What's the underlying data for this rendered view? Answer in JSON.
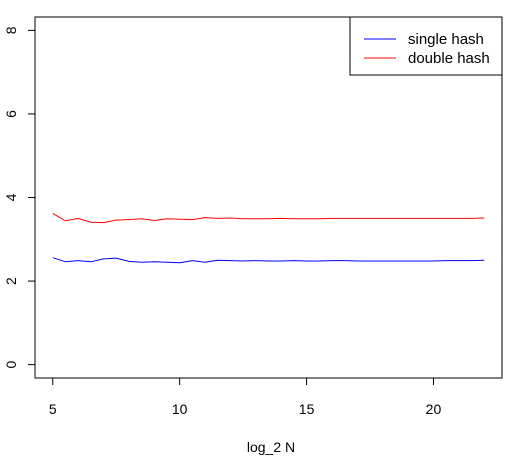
{
  "chart_data": {
    "type": "line",
    "title": "",
    "xlabel": "log_2 N",
    "ylabel": "",
    "xlim": [
      4.3,
      22.7
    ],
    "ylim": [
      -0.32,
      8.32
    ],
    "xticks": [
      5,
      10,
      15,
      20
    ],
    "yticks": [
      0,
      2,
      4,
      6,
      8
    ],
    "grid": false,
    "legend_position": "top-right",
    "x": [
      5,
      5.5,
      6,
      6.5,
      7,
      7.5,
      8,
      8.5,
      9,
      9.5,
      10,
      10.5,
      11,
      11.5,
      12,
      12.5,
      13,
      13.5,
      14,
      14.5,
      15,
      15.5,
      16,
      16.5,
      17,
      17.5,
      18,
      18.5,
      19,
      19.5,
      20,
      20.5,
      21,
      21.5,
      22
    ],
    "series": [
      {
        "name": "single hash",
        "color": "#0000ff",
        "values": [
          2.56,
          2.46,
          2.49,
          2.46,
          2.53,
          2.55,
          2.47,
          2.45,
          2.46,
          2.45,
          2.44,
          2.49,
          2.45,
          2.5,
          2.49,
          2.48,
          2.49,
          2.48,
          2.48,
          2.49,
          2.48,
          2.48,
          2.49,
          2.49,
          2.48,
          2.48,
          2.48,
          2.48,
          2.48,
          2.48,
          2.48,
          2.49,
          2.49,
          2.49,
          2.5
        ]
      },
      {
        "name": "double hash",
        "color": "#ff0000",
        "values": [
          3.62,
          3.44,
          3.5,
          3.41,
          3.4,
          3.46,
          3.47,
          3.49,
          3.45,
          3.49,
          3.48,
          3.47,
          3.52,
          3.5,
          3.51,
          3.49,
          3.49,
          3.49,
          3.5,
          3.49,
          3.49,
          3.49,
          3.5,
          3.5,
          3.5,
          3.5,
          3.5,
          3.5,
          3.5,
          3.5,
          3.5,
          3.5,
          3.5,
          3.5,
          3.51
        ]
      }
    ]
  }
}
